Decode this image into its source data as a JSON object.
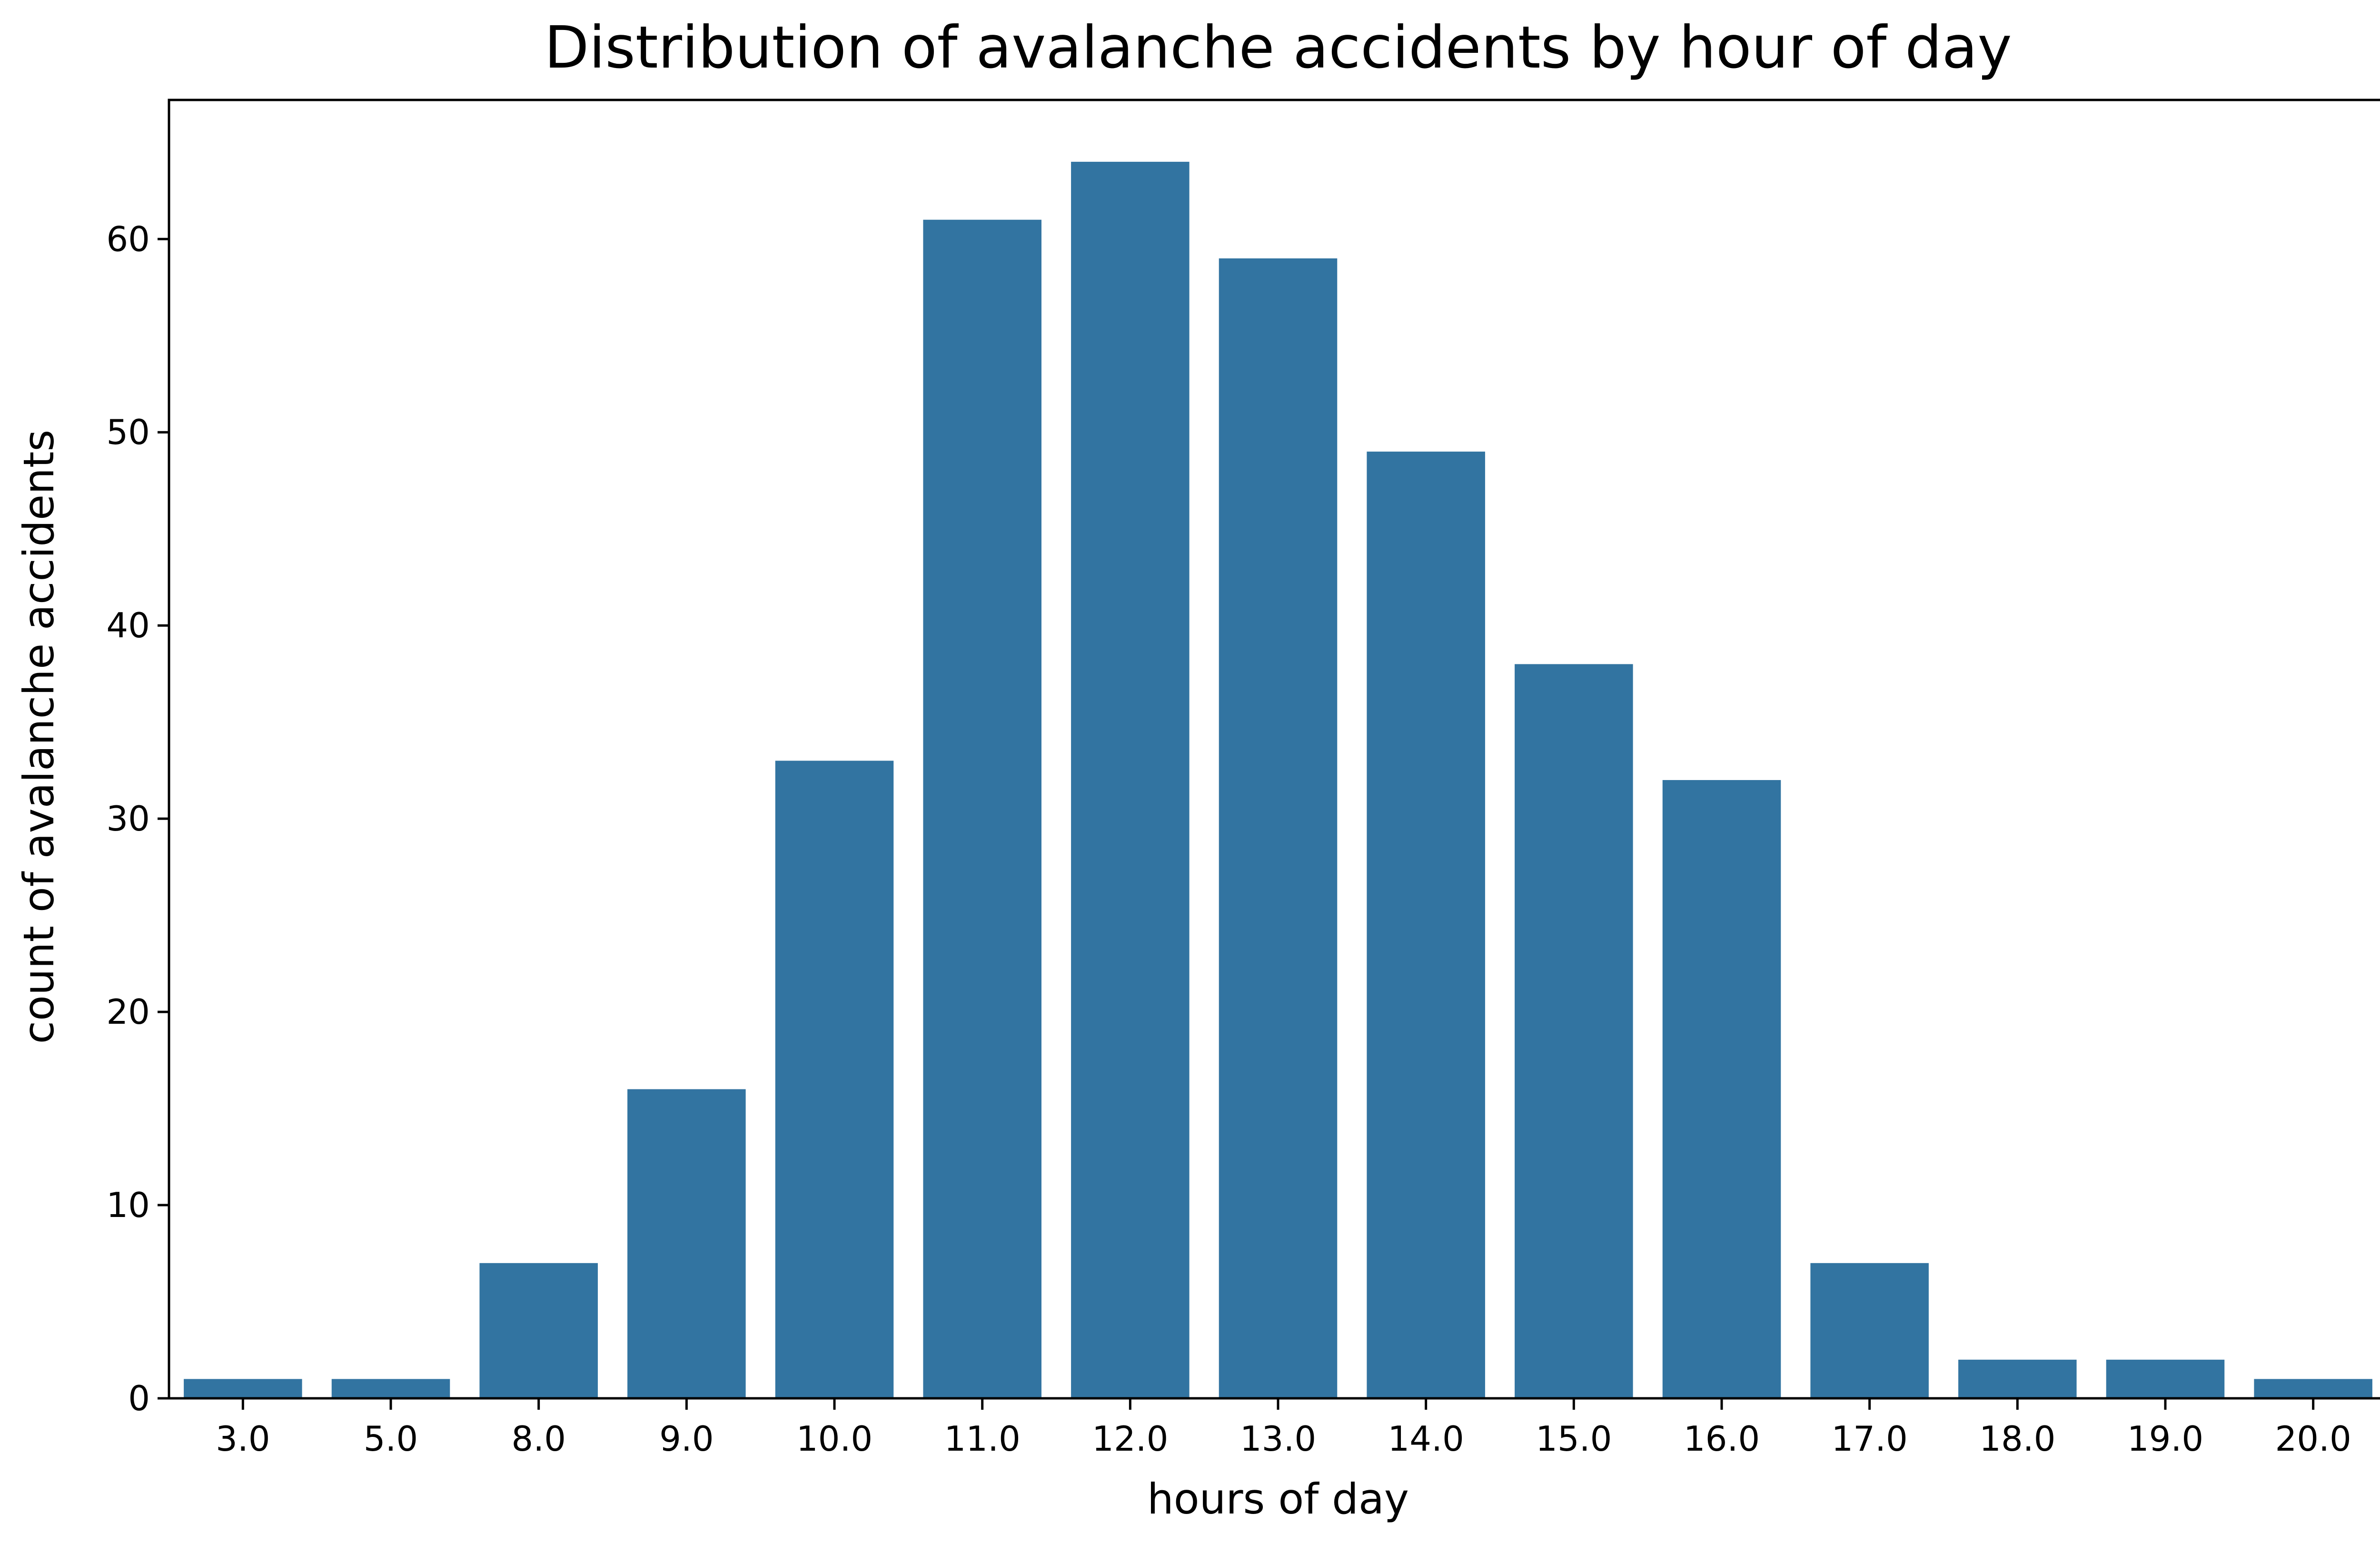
{
  "chart_data": {
    "type": "bar",
    "title": "Distribution of avalanche accidents by hour of day",
    "xlabel": "hours of day",
    "ylabel": "count of avalanche accidents",
    "categories": [
      "3.0",
      "5.0",
      "8.0",
      "9.0",
      "10.0",
      "11.0",
      "12.0",
      "13.0",
      "14.0",
      "15.0",
      "16.0",
      "17.0",
      "18.0",
      "19.0",
      "20.0"
    ],
    "values": [
      1,
      1,
      7,
      16,
      33,
      61,
      64,
      59,
      49,
      38,
      32,
      7,
      2,
      2,
      1
    ],
    "ylim": [
      0,
      67.2
    ],
    "yticks": [
      0,
      10,
      20,
      30,
      40,
      50,
      60
    ],
    "ytick_labels": [
      "0",
      "10",
      "20",
      "30",
      "40",
      "50",
      "60"
    ],
    "grid": false,
    "legend": "none",
    "bar_color": "#3274a1"
  }
}
